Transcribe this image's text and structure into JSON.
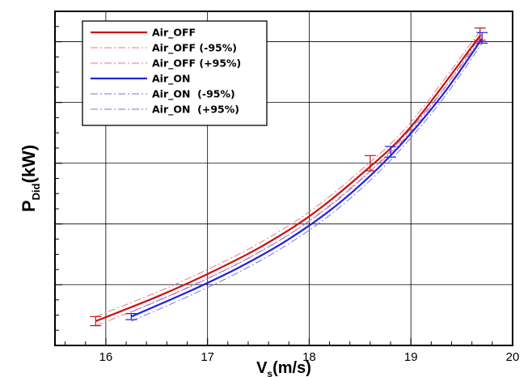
{
  "chart_data": {
    "type": "line",
    "title": "",
    "xlabel": {
      "main": "V",
      "sub": "s",
      "rest": "(m/s)"
    },
    "ylabel": {
      "main": "P",
      "sub": "Did",
      "rest": "(kW)"
    },
    "xlim": [
      15.5,
      20.0
    ],
    "ylim": [
      0,
      11
    ],
    "x_ticks": [
      "16",
      "17",
      "18",
      "19",
      "20"
    ],
    "y_ticks_labeled": false,
    "grid": true,
    "legend_position": "top-left",
    "colors": {
      "off": "#cc1111",
      "off_band": "#e07a8a",
      "on": "#2222dd",
      "on_band": "#7777cc"
    },
    "series": [
      {
        "name": "Air_OFF",
        "style": "solid",
        "x": [
          15.9,
          16.5,
          17.0,
          17.5,
          18.0,
          18.5,
          19.0,
          19.68
        ],
        "y": [
          0.8,
          1.6,
          2.35,
          3.2,
          4.25,
          5.6,
          7.2,
          10.2
        ]
      },
      {
        "name": "Air_OFF (-95%)",
        "style": "dashdot",
        "x": [
          15.9,
          16.5,
          17.0,
          17.5,
          18.0,
          18.5,
          19.0,
          19.68
        ],
        "y": [
          0.65,
          1.45,
          2.2,
          3.05,
          4.1,
          5.45,
          7.05,
          10.05
        ]
      },
      {
        "name": "Air_OFF (+95%)",
        "style": "dashdot",
        "x": [
          15.9,
          16.5,
          17.0,
          17.5,
          18.0,
          18.5,
          19.0,
          19.68
        ],
        "y": [
          0.95,
          1.75,
          2.5,
          3.35,
          4.4,
          5.75,
          7.35,
          10.35
        ]
      },
      {
        "name": "Air_ON",
        "style": "solid",
        "x": [
          16.25,
          16.8,
          17.3,
          17.8,
          18.3,
          18.8,
          19.3,
          19.7
        ],
        "y": [
          0.95,
          1.75,
          2.55,
          3.5,
          4.7,
          6.25,
          8.2,
          10.1
        ]
      },
      {
        "name": "Air_ON  (-95%)",
        "style": "dashdot",
        "x": [
          16.25,
          16.8,
          17.3,
          17.8,
          18.3,
          18.8,
          19.3,
          19.7
        ],
        "y": [
          0.8,
          1.6,
          2.4,
          3.35,
          4.55,
          6.1,
          8.05,
          9.95
        ]
      },
      {
        "name": "Air_ON  (+95%)",
        "style": "dashdot",
        "x": [
          16.25,
          16.8,
          17.3,
          17.8,
          18.3,
          18.8,
          19.3,
          19.7
        ],
        "y": [
          1.1,
          1.9,
          2.7,
          3.65,
          4.85,
          6.4,
          8.35,
          10.25
        ]
      }
    ],
    "error_bars": [
      {
        "series": "Air_OFF",
        "x": 15.9,
        "low": 0.65,
        "high": 0.95
      },
      {
        "series": "Air_OFF",
        "x": 18.6,
        "low": 5.75,
        "high": 6.25
      },
      {
        "series": "Air_OFF",
        "x": 19.68,
        "low": 10.05,
        "high": 10.45
      },
      {
        "series": "Air_ON",
        "x": 16.25,
        "low": 0.85,
        "high": 1.05
      },
      {
        "series": "Air_ON",
        "x": 18.8,
        "low": 6.2,
        "high": 6.55
      },
      {
        "series": "Air_ON",
        "x": 19.7,
        "low": 9.95,
        "high": 10.3
      }
    ]
  }
}
